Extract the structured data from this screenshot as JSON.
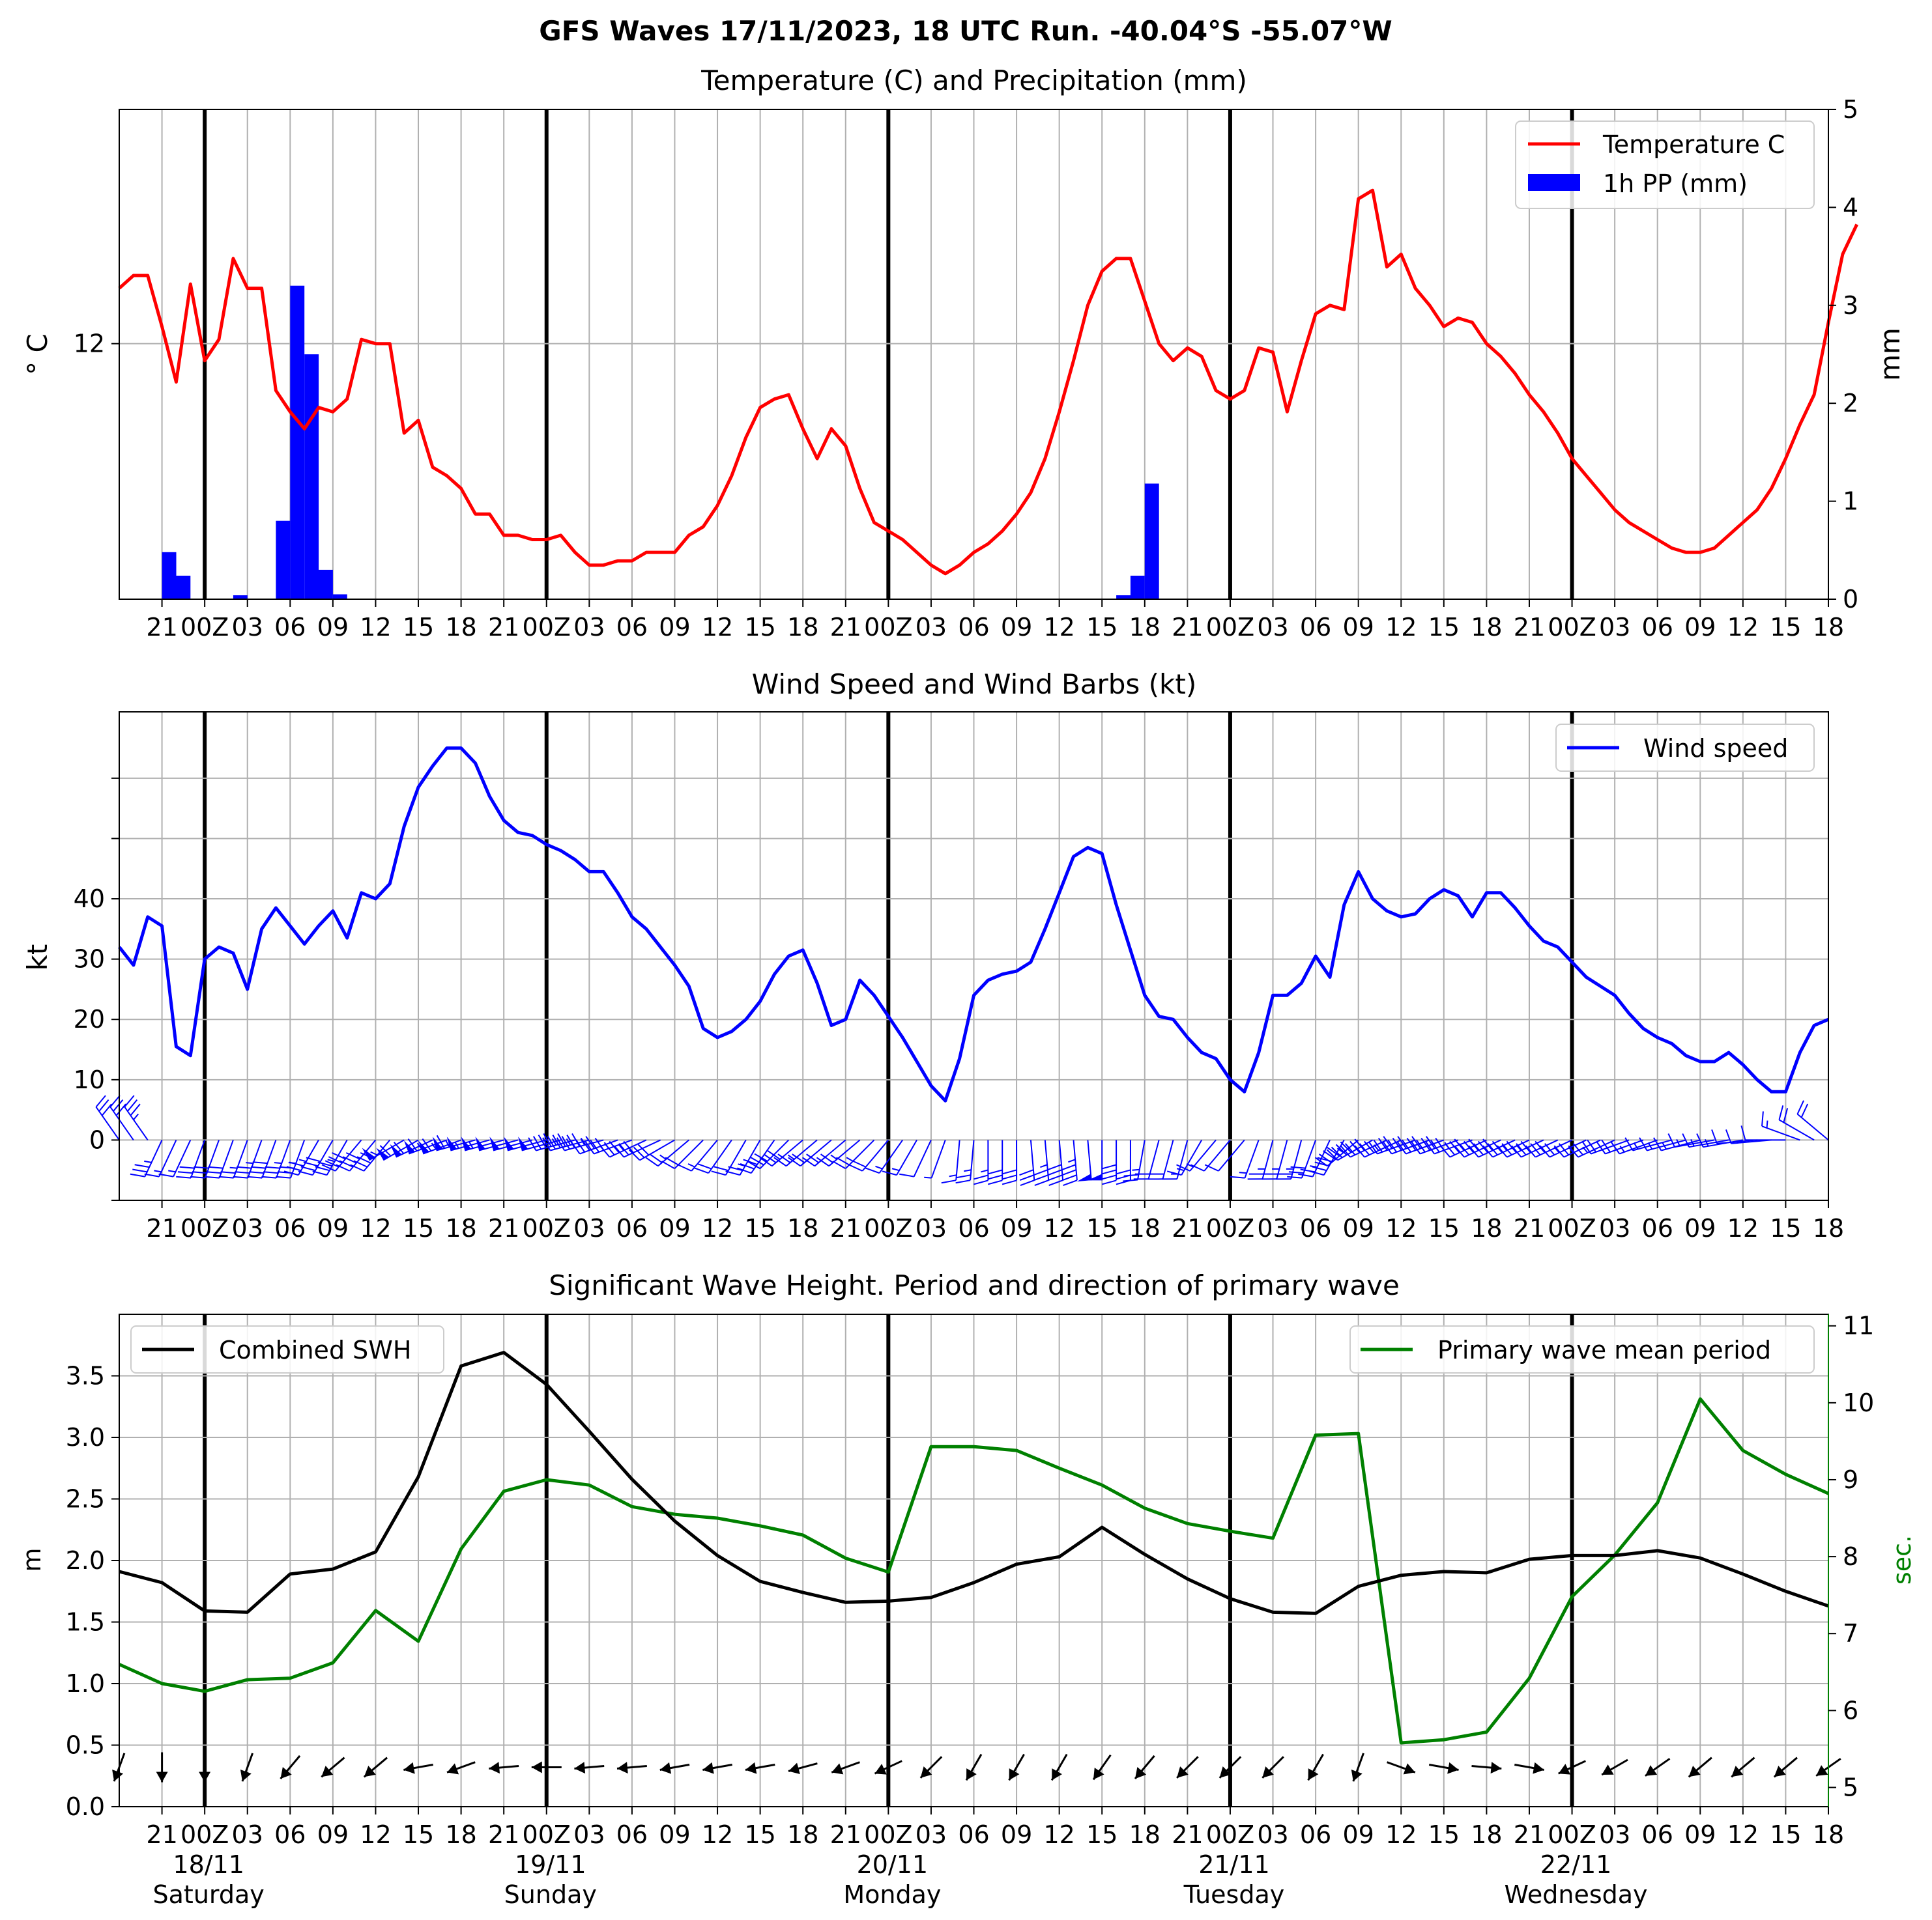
{
  "figure": {
    "suptitle": "GFS Waves 17/11/2023, 18 UTC Run. -40.04°S -55.07°W"
  },
  "time_axis": {
    "hours_per_tick": 3,
    "tick_labels": [
      "21",
      "00Z",
      "03",
      "06",
      "09",
      "12",
      "15",
      "18",
      "21",
      "00Z",
      "03",
      "06",
      "09",
      "12",
      "15",
      "18",
      "21",
      "00Z",
      "03",
      "06",
      "09",
      "12",
      "15",
      "18",
      "21",
      "00Z",
      "03",
      "06",
      "09",
      "12",
      "15",
      "18",
      "21",
      "00Z",
      "03",
      "06",
      "09",
      "12",
      "15",
      "18"
    ],
    "day_labels": [
      {
        "date": "18/11",
        "weekday": "Saturday"
      },
      {
        "date": "19/11",
        "weekday": "Sunday"
      },
      {
        "date": "20/11",
        "weekday": "Monday"
      },
      {
        "date": "21/11",
        "weekday": "Tuesday"
      },
      {
        "date": "22/11",
        "weekday": "Wednesday"
      }
    ]
  },
  "chart_data": [
    {
      "type": "line",
      "title": "Temperature (C) and Precipitation (mm)",
      "ylabel": "° C",
      "ylabel_right": "mm",
      "y_ticks_left": [
        12
      ],
      "ylim_left": [
        6,
        17.5
      ],
      "ylim_right": [
        0,
        5
      ],
      "y_ticks_right": [
        0,
        1,
        2,
        3,
        4,
        5
      ],
      "legend": "top-right",
      "series": [
        {
          "name": "Temperature C",
          "color": "#ff0000",
          "values": [
            13.3,
            13.6,
            13.6,
            12.4,
            11.1,
            13.4,
            11.6,
            12.1,
            14.0,
            13.3,
            13.3,
            10.9,
            10.4,
            10.0,
            10.5,
            10.4,
            10.7,
            12.1,
            12.0,
            12.0,
            9.9,
            10.2,
            9.1,
            8.9,
            8.6,
            8.0,
            8.0,
            7.5,
            7.5,
            7.4,
            7.4,
            7.5,
            7.1,
            6.8,
            6.8,
            6.9,
            6.9,
            7.1,
            7.1,
            7.1,
            7.5,
            7.7,
            8.2,
            8.9,
            9.8,
            10.5,
            10.7,
            10.8,
            10.0,
            9.3,
            10.0,
            9.6,
            8.6,
            7.8,
            7.6,
            7.4,
            7.1,
            6.8,
            6.6,
            6.8,
            7.1,
            7.3,
            7.6,
            8.0,
            8.5,
            9.3,
            10.4,
            11.6,
            12.9,
            13.7,
            14.0,
            14.0,
            13.0,
            12.0,
            11.6,
            11.9,
            11.7,
            10.9,
            10.7,
            10.9,
            11.9,
            11.8,
            10.4,
            11.6,
            12.7,
            12.9,
            12.8,
            15.4,
            15.6,
            13.8,
            14.1,
            13.3,
            12.9,
            12.4,
            12.6,
            12.5,
            12.0,
            11.7,
            11.3,
            10.8,
            10.4,
            9.9,
            9.3,
            8.9,
            8.5,
            8.1,
            7.8,
            7.6,
            7.4,
            7.2,
            7.1,
            7.1,
            7.2,
            7.5,
            7.8,
            8.1,
            8.6,
            9.3,
            10.1,
            10.8,
            12.5,
            14.1,
            14.8
          ]
        },
        {
          "name": "1h PP (mm)",
          "color": "#0000ff",
          "type": "bar",
          "start_hour": 1,
          "hours": [
            3,
            4,
            8,
            11,
            12,
            13,
            14,
            15,
            70,
            71,
            72
          ],
          "values": [
            0.48,
            0.24,
            0.04,
            0.8,
            3.2,
            2.5,
            0.3,
            0.05,
            0.04,
            0.24,
            1.18
          ]
        }
      ]
    },
    {
      "type": "line",
      "title": "Wind Speed and Wind Barbs (kt)",
      "ylabel": "kt",
      "y_ticks": [
        0,
        10,
        20,
        30,
        40
      ],
      "ylim": [
        -10,
        71
      ],
      "legend": "top-right",
      "series": [
        {
          "name": "Wind speed",
          "color": "#0000ff",
          "values": [
            32,
            29,
            37,
            35.5,
            15.5,
            14,
            30,
            32,
            31,
            25,
            35,
            38.5,
            35.5,
            32.5,
            35.5,
            38,
            33.5,
            41,
            40,
            42.5,
            52,
            58.5,
            62,
            65,
            65,
            62.5,
            57,
            53,
            51,
            50.5,
            49,
            48,
            46.5,
            44.5,
            44.5,
            41,
            37,
            35,
            32,
            29,
            25.5,
            18.5,
            17,
            18,
            20,
            23,
            27.5,
            30.5,
            31.5,
            26,
            19,
            20,
            26.5,
            24,
            20.5,
            17,
            13,
            9,
            6.5,
            13.5,
            24,
            26.5,
            27.5,
            28,
            29.5,
            35,
            41,
            47,
            48.5,
            47.5,
            39,
            31.5,
            24,
            20.5,
            20,
            17,
            14.5,
            13.5,
            10,
            8,
            14.5,
            24,
            24,
            26,
            30.5,
            27,
            39,
            44.5,
            40,
            38,
            37,
            37.5,
            40,
            41.5,
            40.5,
            37,
            41,
            41,
            38.5,
            35.5,
            33,
            32,
            29.5,
            27,
            25.5,
            24,
            21,
            18.5,
            17,
            16,
            14,
            13,
            13,
            14.5,
            12.5,
            10,
            8,
            8,
            14.5,
            19,
            20
          ]
        }
      ],
      "wind_dir_deg": [
        325,
        325,
        325,
        205,
        205,
        205,
        200,
        200,
        200,
        200,
        200,
        200,
        200,
        200,
        210,
        210,
        210,
        220,
        220,
        220,
        240,
        240,
        245,
        250,
        250,
        255,
        255,
        255,
        255,
        255,
        255,
        255,
        255,
        255,
        255,
        250,
        250,
        245,
        245,
        240,
        230,
        225,
        220,
        215,
        210,
        210,
        215,
        225,
        230,
        230,
        230,
        230,
        230,
        225,
        220,
        215,
        210,
        205,
        200,
        185,
        185,
        180,
        180,
        180,
        175,
        175,
        175,
        175,
        175,
        180,
        180,
        180,
        190,
        195,
        195,
        195,
        210,
        220,
        220,
        220,
        200,
        195,
        195,
        195,
        200,
        205,
        210,
        230,
        240,
        245,
        245,
        250,
        250,
        250,
        250,
        250,
        245,
        245,
        245,
        245,
        245,
        245,
        245,
        245,
        245,
        245,
        250,
        250,
        250,
        255,
        255,
        255,
        260,
        260,
        260,
        265,
        265,
        270,
        290,
        300,
        310
      ]
    },
    {
      "type": "line",
      "title": "Significant Wave Height. Period and direction of primary wave",
      "ylabel": "m",
      "ylabel_right": "sec.",
      "y_ticks": [
        0.0,
        0.5,
        1.0,
        1.5,
        2.0,
        2.5,
        3.0,
        3.5
      ],
      "ylim": [
        0,
        4.0
      ],
      "ylim_right": [
        4.75,
        11.15
      ],
      "y_ticks_right": [
        5,
        6,
        7,
        8,
        9,
        10,
        11
      ],
      "step_hours": 3,
      "series": [
        {
          "name": "Combined SWH",
          "color": "#000000",
          "legend": "top-left",
          "values": [
            1.91,
            1.82,
            1.59,
            1.58,
            1.89,
            1.93,
            2.07,
            2.68,
            3.58,
            3.69,
            3.43,
            3.05,
            2.66,
            2.32,
            2.04,
            1.83,
            1.74,
            1.66,
            1.67,
            1.7,
            1.82,
            1.97,
            2.03,
            2.27,
            2.05,
            1.85,
            1.69,
            1.58,
            1.57,
            1.79,
            1.88,
            1.91,
            1.9,
            2.01,
            2.04,
            2.04,
            2.08,
            2.02,
            1.89,
            1.75,
            1.63
          ]
        },
        {
          "name": "Primary wave mean period",
          "color": "#008000",
          "legend": "top-right",
          "axis": "right",
          "values": [
            6.6,
            6.35,
            6.25,
            6.4,
            6.42,
            6.62,
            7.3,
            6.9,
            8.1,
            8.85,
            9.0,
            8.93,
            8.65,
            8.55,
            8.5,
            8.4,
            8.28,
            7.98,
            7.8,
            9.43,
            9.43,
            9.38,
            9.15,
            8.93,
            8.63,
            8.43,
            8.33,
            8.24,
            9.58,
            9.6,
            5.58,
            5.62,
            5.72,
            6.42,
            7.48,
            8.02,
            8.7,
            10.05,
            9.38,
            9.07,
            8.82
          ]
        }
      ],
      "wave_dir_deg": [
        200,
        180,
        180,
        200,
        220,
        230,
        230,
        260,
        250,
        265,
        270,
        265,
        265,
        260,
        260,
        260,
        255,
        250,
        245,
        225,
        210,
        210,
        210,
        215,
        220,
        225,
        225,
        225,
        210,
        200,
        110,
        100,
        95,
        100,
        245,
        240,
        235,
        230,
        230,
        230,
        235
      ]
    }
  ]
}
